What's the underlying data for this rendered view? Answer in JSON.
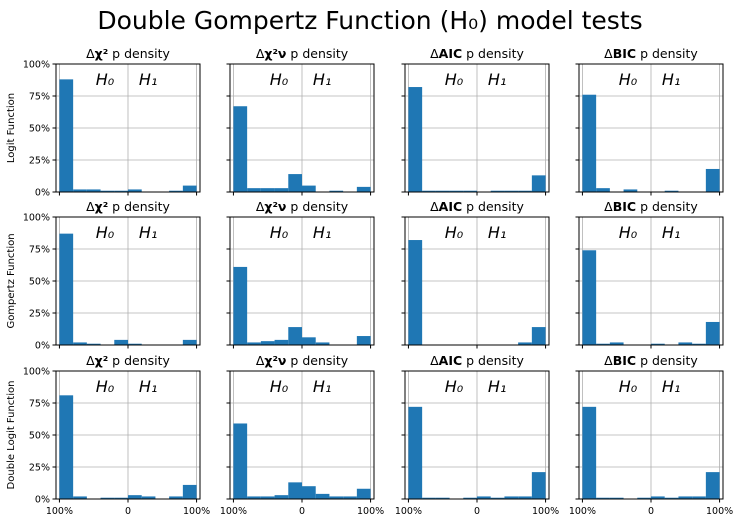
{
  "title": "Double Gompertz Function",
  "title_math": "(H₀) model tests",
  "hypothesis_labels": [
    "H₀",
    "H₁"
  ],
  "colors": {
    "bar": "#1f77b4",
    "grid": "#b0b0b0",
    "axis": "#000000"
  },
  "row_labels": [
    "Logit Function",
    "Gompertz Function",
    "Double Logit Function"
  ],
  "column_titles": [
    {
      "prefix": "Δ",
      "stat": "χ²",
      "suffix": " p density"
    },
    {
      "prefix": "Δ",
      "stat": "χ²ν",
      "suffix": " p density"
    },
    {
      "prefix": "Δ",
      "stat": "AIC",
      "suffix": " p density"
    },
    {
      "prefix": "Δ",
      "stat": "BIC",
      "suffix": " p density"
    }
  ],
  "y_ticks": [
    "0%",
    "25%",
    "50%",
    "75%",
    "100%"
  ],
  "x_ticks": [
    "100%",
    "0",
    "100%"
  ],
  "chart_data": {
    "type": "bar",
    "layout": "3x4 grid of histograms",
    "xlim": [
      -1.05,
      1.05
    ],
    "ylim": [
      0,
      100
    ],
    "bin_edges": [
      -1.0,
      -0.8,
      -0.6,
      -0.4,
      -0.2,
      0.0,
      0.2,
      0.4,
      0.6,
      0.8,
      1.0
    ],
    "grid": true,
    "panels": [
      [
        {
          "values": [
            88,
            2,
            2,
            1,
            1,
            2,
            0,
            0,
            1,
            5
          ]
        },
        {
          "values": [
            67,
            3,
            3,
            3,
            14,
            5,
            0,
            1,
            0,
            4
          ]
        },
        {
          "values": [
            82,
            1,
            1,
            1,
            1,
            0,
            1,
            1,
            1,
            13
          ]
        },
        {
          "values": [
            76,
            3,
            0,
            2,
            0,
            0,
            1,
            0,
            0,
            18
          ]
        }
      ],
      [
        {
          "values": [
            87,
            2,
            1,
            0,
            4,
            1,
            0,
            0,
            0,
            4
          ]
        },
        {
          "values": [
            61,
            2,
            3,
            4,
            14,
            6,
            2,
            0,
            0,
            7
          ]
        },
        {
          "values": [
            82,
            0,
            0,
            0,
            0,
            0,
            0,
            0,
            2,
            14
          ]
        },
        {
          "values": [
            74,
            1,
            2,
            0,
            0,
            1,
            0,
            2,
            1,
            18
          ]
        }
      ],
      [
        {
          "values": [
            81,
            2,
            0,
            1,
            1,
            3,
            2,
            0,
            2,
            11
          ]
        },
        {
          "values": [
            59,
            2,
            2,
            3,
            13,
            10,
            4,
            2,
            2,
            8
          ]
        },
        {
          "values": [
            72,
            1,
            1,
            0,
            1,
            2,
            1,
            2,
            2,
            21
          ]
        },
        {
          "values": [
            72,
            1,
            1,
            0,
            1,
            2,
            1,
            2,
            2,
            21
          ]
        }
      ]
    ]
  }
}
